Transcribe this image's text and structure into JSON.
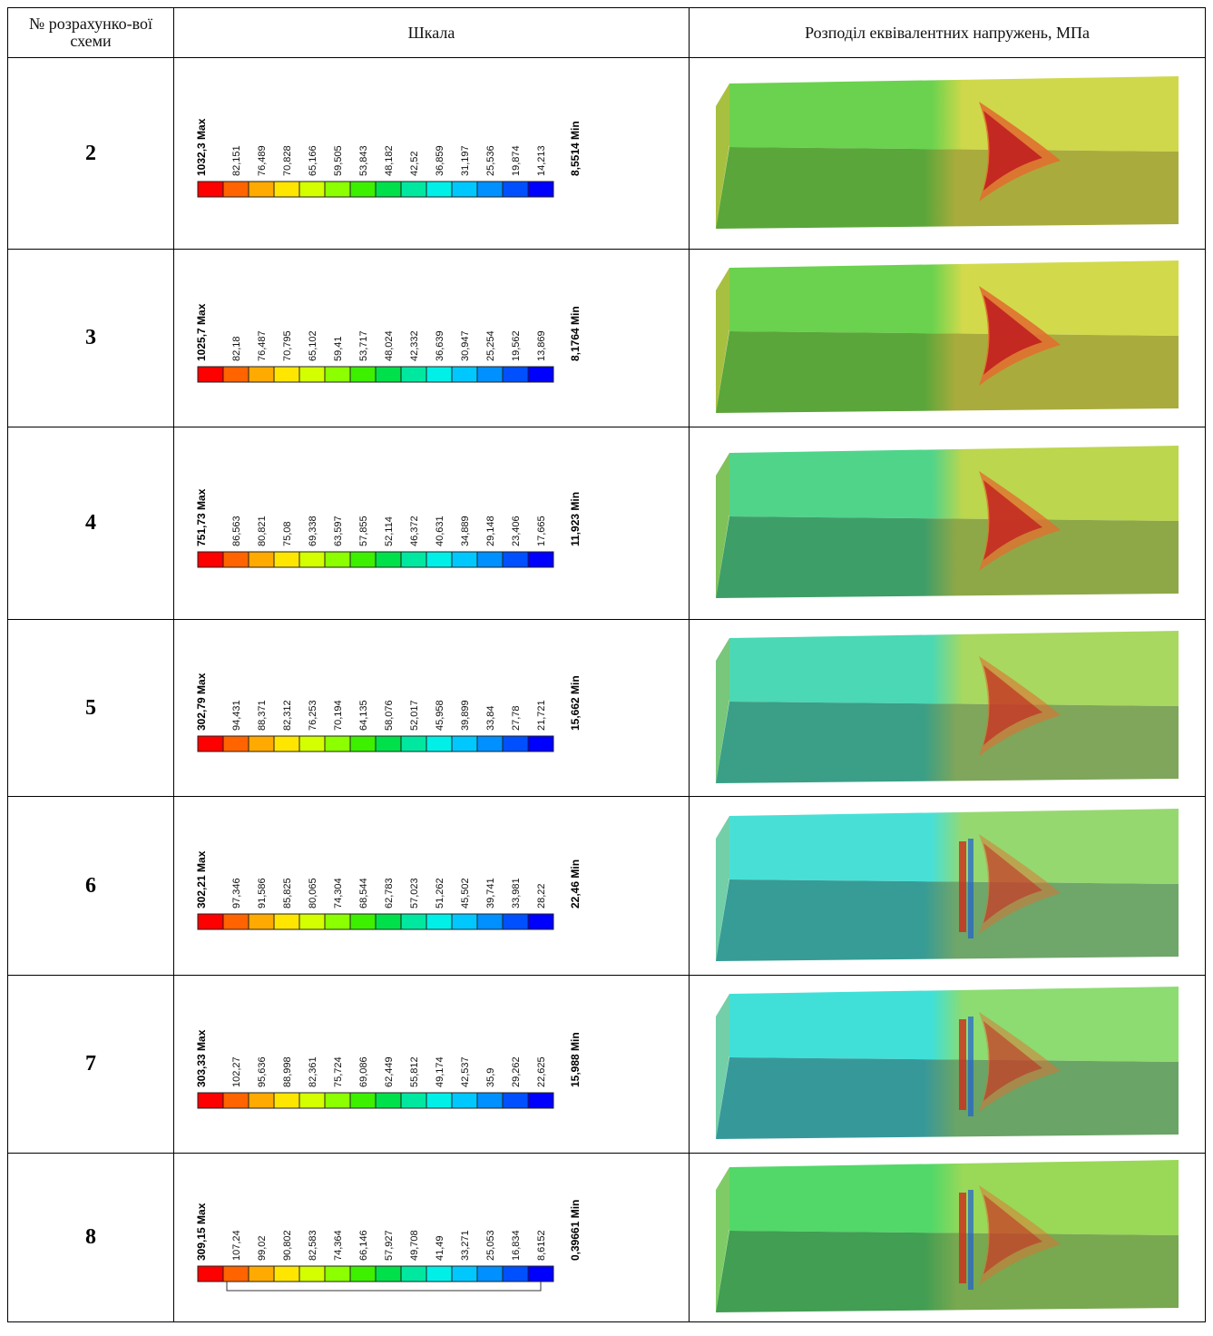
{
  "header": {
    "col_num": "№ розрахунко-вої схеми",
    "col_scale": "Шкала",
    "col_dist": "Розподіл еквівалентних напружень, МПа"
  },
  "legend_colors": [
    "#ff0000",
    "#ff6400",
    "#ffaa00",
    "#ffe600",
    "#d4ff00",
    "#8cff00",
    "#3cf000",
    "#00e04a",
    "#00e8a0",
    "#00f0e8",
    "#00c8ff",
    "#0090ff",
    "#0050ff",
    "#0000ff"
  ],
  "rows": [
    {
      "num": "2",
      "max": "1032,3 Max",
      "min": "8,5514 Min",
      "labels": [
        "82,151",
        "76,489",
        "70,828",
        "65,166",
        "59,505",
        "53,843",
        "48,182",
        "42,52",
        "36,859",
        "31,197",
        "25,536",
        "19,874",
        "14,213"
      ]
    },
    {
      "num": "3",
      "max": "1025,7 Max",
      "min": "8,1764 Min",
      "labels": [
        "82,18",
        "76,487",
        "70,795",
        "65,102",
        "59,41",
        "53,717",
        "48,024",
        "42,332",
        "36,639",
        "30,947",
        "25,254",
        "19,562",
        "13,869"
      ]
    },
    {
      "num": "4",
      "max": "751,73 Max",
      "min": "11,923 Min",
      "labels": [
        "86,563",
        "80,821",
        "75,08",
        "69,338",
        "63,597",
        "57,855",
        "52,114",
        "46,372",
        "40,631",
        "34,889",
        "29,148",
        "23,406",
        "17,665"
      ]
    },
    {
      "num": "5",
      "max": "302,79 Max",
      "min": "15,662 Min",
      "labels": [
        "94,431",
        "88,371",
        "82,312",
        "76,253",
        "70,194",
        "64,135",
        "58,076",
        "52,017",
        "45,958",
        "39,899",
        "33,84",
        "27,78",
        "21,721"
      ]
    },
    {
      "num": "6",
      "max": "302,21 Max",
      "min": "22,46 Min",
      "labels": [
        "97,346",
        "91,586",
        "85,825",
        "80,065",
        "74,304",
        "68,544",
        "62,783",
        "57,023",
        "51,262",
        "45,502",
        "39,741",
        "33,981",
        "28,22"
      ]
    },
    {
      "num": "7",
      "max": "303,33 Max",
      "min": "15,988 Min",
      "labels": [
        "102,27",
        "95,636",
        "88,998",
        "82,361",
        "75,724",
        "69,086",
        "62,449",
        "55,812",
        "49,174",
        "42,537",
        "35,9",
        "29,262",
        "22,625"
      ]
    },
    {
      "num": "8",
      "max": "309,15 Max",
      "min": "0,39661 Min",
      "labels": [
        "107,24",
        "99,02",
        "90,802",
        "82,583",
        "74,364",
        "66,146",
        "57,927",
        "49,708",
        "41,49",
        "33,271",
        "25,053",
        "16,834",
        "8,6152"
      ]
    }
  ]
}
